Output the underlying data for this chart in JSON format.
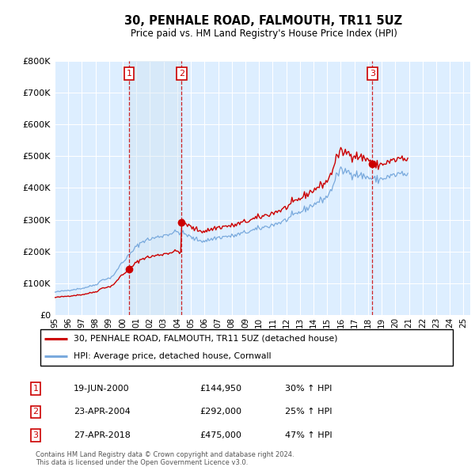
{
  "title": "30, PENHALE ROAD, FALMOUTH, TR11 5UZ",
  "subtitle": "Price paid vs. HM Land Registry's House Price Index (HPI)",
  "legend_line1": "30, PENHALE ROAD, FALMOUTH, TR11 5UZ (detached house)",
  "legend_line2": "HPI: Average price, detached house, Cornwall",
  "footer1": "Contains HM Land Registry data © Crown copyright and database right 2024.",
  "footer2": "This data is licensed under the Open Government Licence v3.0.",
  "sale_points": [
    {
      "num": 1,
      "date": "19-JUN-2000",
      "price": 144950,
      "pct": "30%",
      "x": 2000.47
    },
    {
      "num": 2,
      "date": "23-APR-2004",
      "price": 292000,
      "pct": "25%",
      "x": 2004.31
    },
    {
      "num": 3,
      "date": "27-APR-2018",
      "price": 475000,
      "pct": "47%",
      "x": 2018.32
    }
  ],
  "red_line_color": "#cc0000",
  "blue_line_color": "#7aaadd",
  "shade_color": "#cce0f0",
  "background_color": "#ffffff",
  "plot_bg_color": "#ddeeff",
  "grid_color": "#ffffff",
  "sale_box_color": "#cc0000",
  "vline_color": "#cc0000",
  "ylim": [
    0,
    800000
  ],
  "xlim": [
    1995.0,
    2025.5
  ],
  "yticks": [
    0,
    100000,
    200000,
    300000,
    400000,
    500000,
    600000,
    700000,
    800000
  ],
  "xticks": [
    1995,
    1996,
    1997,
    1998,
    1999,
    2000,
    2001,
    2002,
    2003,
    2004,
    2005,
    2006,
    2007,
    2008,
    2009,
    2010,
    2011,
    2012,
    2013,
    2014,
    2015,
    2016,
    2017,
    2018,
    2019,
    2020,
    2021,
    2022,
    2023,
    2024,
    2025
  ],
  "hpi_base_monthly": [
    72000,
    73000,
    73500,
    74000,
    74500,
    75000,
    75500,
    76000,
    76500,
    77000,
    77500,
    78000,
    78500,
    79000,
    79500,
    80000,
    80500,
    81000,
    81500,
    82000,
    82500,
    83000,
    83500,
    84000,
    84500,
    85200,
    86000,
    87000,
    88000,
    89000,
    90000,
    91000,
    92000,
    93000,
    94000,
    95000,
    96000,
    98000,
    100000,
    103000,
    106000,
    109000,
    112000,
    113000,
    113500,
    114000,
    114500,
    115000,
    116000,
    118000,
    121000,
    124000,
    127000,
    130000,
    135000,
    141000,
    148000,
    155000,
    160000,
    163000,
    166000,
    170000,
    175000,
    180000,
    184000,
    187000,
    190000,
    194000,
    198000,
    203000,
    207000,
    212000,
    216000,
    219000,
    222000,
    225000,
    228000,
    231000,
    233000,
    235000,
    236000,
    237000,
    237500,
    238000,
    239000,
    240000,
    241000,
    242000,
    243000,
    244000,
    245000,
    246000,
    247000,
    248000,
    249000,
    250000,
    251000,
    252000,
    253000,
    254000,
    255000,
    256000,
    257000,
    258000,
    259000,
    260000,
    261000,
    262000,
    262000,
    261000,
    260000,
    259000,
    258000,
    257000,
    256000,
    255000,
    253000,
    251000,
    249000,
    247000,
    245000,
    243000,
    241000,
    240000,
    239000,
    238000,
    237000,
    236000,
    235500,
    235000,
    234500,
    234000,
    234000,
    234500,
    235000,
    236000,
    237000,
    238000,
    239000,
    240000,
    241000,
    242000,
    243000,
    244000,
    244000,
    244500,
    245000,
    245500,
    246000,
    246500,
    247000,
    247500,
    248000,
    248000,
    248000,
    248000,
    248500,
    249000,
    250000,
    251000,
    252000,
    253000,
    254000,
    255000,
    256000,
    257000,
    258000,
    259000,
    260000,
    261000,
    262000,
    263000,
    264000,
    265000,
    266000,
    267000,
    268000,
    269000,
    270000,
    271000,
    272000,
    273000,
    274000,
    275000,
    276000,
    277000,
    278000,
    279000,
    280000,
    281000,
    282000,
    283000,
    284000,
    285000,
    286500,
    288000,
    289000,
    290000,
    291000,
    292000,
    293000,
    294500,
    296000,
    298000,
    300000,
    302000,
    304000,
    306000,
    308000,
    310000,
    312000,
    314000,
    316000,
    318000,
    320000,
    322000,
    324000,
    326000,
    328000,
    330000,
    332000,
    334000,
    336000,
    338000,
    340000,
    342000,
    344000,
    346000,
    348000,
    350000,
    352000,
    354000,
    356000,
    358000,
    360000,
    362000,
    364000,
    366000,
    368000,
    370000,
    374000,
    378000,
    383000,
    390000,
    398000,
    408000,
    418000,
    428000,
    436000,
    442000,
    446000,
    450000,
    452000,
    453000,
    454000,
    454000,
    453000,
    452000,
    451000,
    450000,
    449000,
    448000,
    447000,
    446000,
    445000,
    444000,
    443000,
    442000,
    441000,
    440000,
    439000,
    438000,
    437000,
    436000,
    435000,
    434000,
    433000,
    432000,
    431000,
    430000,
    429000,
    428000,
    427000,
    426000,
    426000,
    426500,
    427000,
    428000,
    429000,
    430000,
    431000,
    432000,
    433000,
    434000,
    435000,
    436000,
    437000,
    438000,
    439000,
    440000,
    441000,
    442000,
    443000,
    444000,
    445000,
    445000,
    444000,
    443000,
    442000,
    441000,
    440000,
    439000
  ]
}
